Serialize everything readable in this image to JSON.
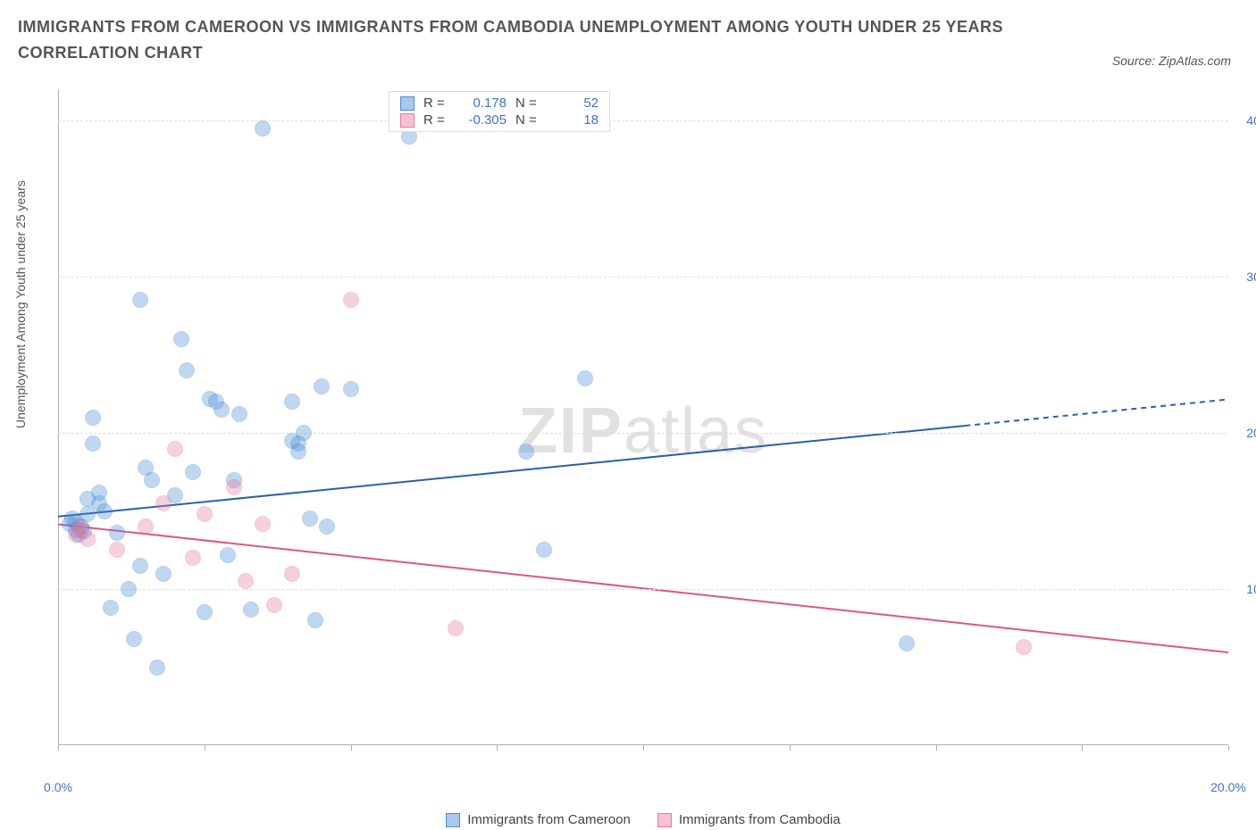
{
  "title": {
    "line1": "IMMIGRANTS FROM CAMEROON VS IMMIGRANTS FROM CAMBODIA UNEMPLOYMENT AMONG YOUTH UNDER 25 YEARS",
    "line2": "CORRELATION CHART"
  },
  "source": {
    "label": "Source:",
    "value": "ZipAtlas.com"
  },
  "y_axis_label": "Unemployment Among Youth under 25 years",
  "watermark": {
    "bold": "ZIP",
    "rest": "atlas"
  },
  "chart": {
    "type": "scatter",
    "background_color": "#ffffff",
    "grid_color": "#dddddd",
    "axis_color": "#b0b0b0",
    "tick_label_color": "#4472c4",
    "xlim": [
      0,
      20
    ],
    "ylim": [
      0,
      42
    ],
    "x_ticks": [
      0,
      2.5,
      5,
      7.5,
      10,
      12.5,
      15,
      17.5,
      20
    ],
    "x_tick_labels": {
      "0": "0.0%",
      "20": "20.0%"
    },
    "y_ticks": [
      10,
      20,
      30,
      40
    ],
    "y_tick_labels": {
      "10": "10.0%",
      "20": "20.0%",
      "30": "30.0%",
      "40": "40.0%"
    },
    "marker_radius": 9,
    "marker_fill_opacity": 0.35,
    "marker_stroke_width": 1.2,
    "series": [
      {
        "name": "Immigrants from Cameroon",
        "color": "#4a90d9",
        "stroke": "#3a78c2",
        "R": "0.178",
        "N": "52",
        "trend": {
          "x1": 0,
          "y1": 15.5,
          "x2": 20,
          "y2": 23.0,
          "solid_until_x": 15.5,
          "color": "#2a5fb0",
          "width": 2
        },
        "points": [
          [
            0.2,
            14.2
          ],
          [
            0.25,
            14.5
          ],
          [
            0.3,
            13.8
          ],
          [
            0.3,
            14.3
          ],
          [
            0.35,
            13.5
          ],
          [
            0.4,
            14.0
          ],
          [
            0.45,
            13.7
          ],
          [
            0.5,
            14.8
          ],
          [
            0.6,
            21.0
          ],
          [
            0.6,
            19.3
          ],
          [
            0.7,
            16.2
          ],
          [
            0.7,
            15.5
          ],
          [
            0.8,
            15.0
          ],
          [
            0.9,
            8.8
          ],
          [
            1.0,
            13.6
          ],
          [
            1.2,
            10.0
          ],
          [
            1.3,
            6.8
          ],
          [
            1.4,
            11.5
          ],
          [
            1.4,
            28.5
          ],
          [
            1.5,
            17.8
          ],
          [
            1.6,
            17.0
          ],
          [
            1.7,
            5.0
          ],
          [
            1.8,
            11.0
          ],
          [
            2.0,
            16.0
          ],
          [
            2.1,
            26.0
          ],
          [
            2.2,
            24.0
          ],
          [
            2.3,
            17.5
          ],
          [
            2.5,
            8.5
          ],
          [
            2.6,
            22.2
          ],
          [
            2.7,
            22.0
          ],
          [
            2.8,
            21.5
          ],
          [
            2.9,
            12.2
          ],
          [
            3.0,
            17.0
          ],
          [
            3.1,
            21.2
          ],
          [
            3.3,
            8.7
          ],
          [
            3.5,
            39.5
          ],
          [
            4.0,
            22.0
          ],
          [
            4.0,
            19.5
          ],
          [
            4.1,
            19.3
          ],
          [
            4.1,
            18.8
          ],
          [
            4.2,
            20.0
          ],
          [
            4.3,
            14.5
          ],
          [
            4.4,
            8.0
          ],
          [
            4.5,
            23.0
          ],
          [
            4.6,
            14.0
          ],
          [
            5.0,
            22.8
          ],
          [
            6.0,
            39.0
          ],
          [
            8.0,
            18.8
          ],
          [
            8.3,
            12.5
          ],
          [
            9.0,
            23.5
          ],
          [
            14.5,
            6.5
          ],
          [
            0.5,
            15.8
          ]
        ]
      },
      {
        "name": "Immigrants from Cambodia",
        "color": "#e87aa0",
        "stroke": "#d96590",
        "R": "-0.305",
        "N": "18",
        "trend": {
          "x1": 0,
          "y1": 15.0,
          "x2": 20,
          "y2": 6.8,
          "solid_until_x": 20,
          "color": "#e05585",
          "width": 2
        },
        "points": [
          [
            0.3,
            13.5
          ],
          [
            0.35,
            14.0
          ],
          [
            0.4,
            13.8
          ],
          [
            0.5,
            13.2
          ],
          [
            1.0,
            12.5
          ],
          [
            1.5,
            14.0
          ],
          [
            1.8,
            15.5
          ],
          [
            2.0,
            19.0
          ],
          [
            2.3,
            12.0
          ],
          [
            2.5,
            14.8
          ],
          [
            3.0,
            16.5
          ],
          [
            3.2,
            10.5
          ],
          [
            3.5,
            14.2
          ],
          [
            3.7,
            9.0
          ],
          [
            4.0,
            11.0
          ],
          [
            5.0,
            28.5
          ],
          [
            6.8,
            7.5
          ],
          [
            16.5,
            6.3
          ]
        ]
      }
    ]
  },
  "legend_top": {
    "rows": [
      {
        "swatch_fill": "#a8c8ec",
        "swatch_stroke": "#4a90d9",
        "R_label": "R =",
        "R_val": "0.178",
        "N_label": "N =",
        "N_val": "52"
      },
      {
        "swatch_fill": "#f5c2d4",
        "swatch_stroke": "#e87aa0",
        "R_label": "R =",
        "R_val": "-0.305",
        "N_label": "N =",
        "N_val": "18"
      }
    ]
  },
  "legend_bottom": {
    "items": [
      {
        "swatch_fill": "#a8c8ec",
        "swatch_stroke": "#4a90d9",
        "label": "Immigrants from Cameroon"
      },
      {
        "swatch_fill": "#f5c2d4",
        "swatch_stroke": "#e87aa0",
        "label": "Immigrants from Cambodia"
      }
    ]
  }
}
